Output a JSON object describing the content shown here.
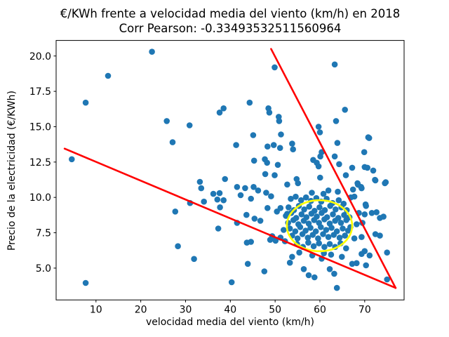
{
  "figure": {
    "title": "€/KWh frente a velocidad media del viento (km/h) en 2018",
    "subtitle": "Corr Pearson: -0.33493532511560964"
  },
  "chart_data": {
    "type": "scatter",
    "title": "€/KWh frente a velocidad media del viento (km/h) en 2018",
    "subtitle": "Corr Pearson: -0.33493532511560964",
    "xlabel": "velocidad media del viento (km/h)",
    "ylabel": "Precio de la electricidad (€/KWh)",
    "xlim": [
      1.1,
      78.8
    ],
    "ylim": [
      2.75,
      21.1
    ],
    "x_ticks": [
      10,
      20,
      30,
      40,
      50,
      60,
      70
    ],
    "x_tick_labels": [
      "10",
      "20",
      "30",
      "40",
      "50",
      "60",
      "70"
    ],
    "y_ticks": [
      5.0,
      7.5,
      10.0,
      12.5,
      15.0,
      17.5,
      20.0
    ],
    "y_tick_labels": [
      "5.0",
      "7.5",
      "10.0",
      "12.5",
      "15.0",
      "17.5",
      "20.0"
    ],
    "grid": false,
    "legend": null,
    "marker": {
      "color": "#1f77b4",
      "radius_px": 4.3
    },
    "annotations": {
      "lines": [
        {
          "name": "lower-red-line",
          "color": "#ff0000",
          "width": 2.6,
          "from": [
            3.0,
            13.45
          ],
          "to": [
            76.9,
            3.6
          ]
        },
        {
          "name": "upper-red-line",
          "color": "#ff0000",
          "width": 2.6,
          "from": [
            49.1,
            20.5
          ],
          "to": [
            76.9,
            3.6
          ]
        }
      ],
      "ellipse": {
        "name": "cluster-ellipse",
        "color": "#ffff00",
        "width": 2.6,
        "center": [
          59.9,
          8.0
        ],
        "rx": 7.3,
        "ry": 1.8
      }
    },
    "points": [
      [
        22.5,
        20.3
      ],
      [
        12.7,
        18.6
      ],
      [
        7.7,
        16.7
      ],
      [
        25.8,
        15.4
      ],
      [
        30.9,
        15.1
      ],
      [
        37.6,
        16.0
      ],
      [
        38.5,
        16.3
      ],
      [
        27.1,
        13.9
      ],
      [
        4.6,
        12.7
      ],
      [
        7.7,
        3.95
      ],
      [
        31,
        9.6
      ],
      [
        27.7,
        9.0
      ],
      [
        33.2,
        11.1
      ],
      [
        33.5,
        10.65
      ],
      [
        36.2,
        10.25
      ],
      [
        37.6,
        10.3
      ],
      [
        38.8,
        11.3
      ],
      [
        34.1,
        9.7
      ],
      [
        37.1,
        9.85
      ],
      [
        38.5,
        9.8
      ],
      [
        37.7,
        9.3
      ],
      [
        37.3,
        7.8
      ],
      [
        28.3,
        6.55
      ],
      [
        31.9,
        5.65
      ],
      [
        40.3,
        4.0
      ],
      [
        49.9,
        19.2
      ],
      [
        63.3,
        19.4
      ],
      [
        44.3,
        16.7
      ],
      [
        48.5,
        16.3
      ],
      [
        48.7,
        16.0
      ],
      [
        50.8,
        15.7
      ],
      [
        50.9,
        15.4
      ],
      [
        65.6,
        16.2
      ],
      [
        63.6,
        15.4
      ],
      [
        59.7,
        15.0
      ],
      [
        60.0,
        14.6
      ],
      [
        45.1,
        14.4
      ],
      [
        51.3,
        14.45
      ],
      [
        71.0,
        14.2
      ],
      [
        41.3,
        13.7
      ],
      [
        48.3,
        13.6
      ],
      [
        49.7,
        13.7
      ],
      [
        51.1,
        13.5
      ],
      [
        53.8,
        13.8
      ],
      [
        54.0,
        13.4
      ],
      [
        63.9,
        13.85
      ],
      [
        69.9,
        13.2
      ],
      [
        60.4,
        13.2
      ],
      [
        60.1,
        12.9
      ],
      [
        45.3,
        12.6
      ],
      [
        47.7,
        12.7
      ],
      [
        48.2,
        12.45
      ],
      [
        50.6,
        12.3
      ],
      [
        58.5,
        12.65
      ],
      [
        59.3,
        12.45
      ],
      [
        59.7,
        12.2
      ],
      [
        63.3,
        12.9
      ],
      [
        64.3,
        12.35
      ],
      [
        70.0,
        12.15
      ],
      [
        67.2,
        12.1
      ],
      [
        70.6,
        12.1
      ],
      [
        71.9,
        11.9
      ],
      [
        70.8,
        14.25
      ],
      [
        72.4,
        11.2
      ],
      [
        74.5,
        11.0
      ],
      [
        68.5,
        10.9
      ],
      [
        69.3,
        10.65
      ],
      [
        67.4,
        10.56
      ],
      [
        66.9,
        10.0
      ],
      [
        67.7,
        10.06
      ],
      [
        70.3,
        9.4
      ],
      [
        68.7,
        8.9
      ],
      [
        70.0,
        8.8
      ],
      [
        71.6,
        8.9
      ],
      [
        72.65,
        8.95
      ],
      [
        73.4,
        8.55
      ],
      [
        74.2,
        8.64
      ],
      [
        68.2,
        8.1
      ],
      [
        69.5,
        8.2
      ],
      [
        72.4,
        7.4
      ],
      [
        73.4,
        7.3
      ],
      [
        67.7,
        7.1
      ],
      [
        69.3,
        7.2
      ],
      [
        65.85,
        6.4
      ],
      [
        70.0,
        6.2
      ],
      [
        69.3,
        6.0
      ],
      [
        71.1,
        5.9
      ],
      [
        75.0,
        6.1
      ],
      [
        68.2,
        5.35
      ],
      [
        67.2,
        5.3
      ],
      [
        70.3,
        5.2
      ],
      [
        75.0,
        4.2
      ],
      [
        70.2,
        9.5
      ],
      [
        74.7,
        11.07
      ],
      [
        72.3,
        11.24
      ],
      [
        43.7,
        6.8
      ],
      [
        43.9,
        5.3
      ],
      [
        47.6,
        4.77
      ],
      [
        48.9,
        7.0
      ],
      [
        51.2,
        7.16
      ],
      [
        53.3,
        5.38
      ],
      [
        53.8,
        5.8
      ],
      [
        56.4,
        4.93
      ],
      [
        57.5,
        4.5
      ],
      [
        58.8,
        4.35
      ],
      [
        60.4,
        5.67
      ],
      [
        62.2,
        4.93
      ],
      [
        63.2,
        4.6
      ],
      [
        63.8,
        3.6
      ],
      [
        64.9,
        5.8
      ],
      [
        47.8,
        11.65
      ],
      [
        49.9,
        11.57
      ],
      [
        54.8,
        11.3
      ],
      [
        60.05,
        11.4
      ],
      [
        65.8,
        11.57
      ],
      [
        68.4,
        11.0
      ],
      [
        69.2,
        10.74
      ],
      [
        41.5,
        10.74
      ],
      [
        43.3,
        10.66
      ],
      [
        45.2,
        10.74
      ],
      [
        46.2,
        10.49
      ],
      [
        42.3,
        10.16
      ],
      [
        44.6,
        9.91
      ],
      [
        48.0,
        10.33
      ],
      [
        49.1,
        10.08
      ],
      [
        52.7,
        10.91
      ],
      [
        55.1,
        11.0
      ],
      [
        58.2,
        10.33
      ],
      [
        60.8,
        10.25
      ],
      [
        61.9,
        10.49
      ],
      [
        64.0,
        10.4
      ],
      [
        48.3,
        9.25
      ],
      [
        50.4,
        9.0
      ],
      [
        51.2,
        9.25
      ],
      [
        52.7,
        8.84
      ],
      [
        43.6,
        8.76
      ],
      [
        45.4,
        8.5
      ],
      [
        46.7,
        8.35
      ],
      [
        41.5,
        8.2
      ],
      [
        49.35,
        7.26
      ],
      [
        50.1,
        6.94
      ],
      [
        44.6,
        6.86
      ],
      [
        53.5,
        9.9
      ],
      [
        54.6,
        10.05
      ],
      [
        55.8,
        9.8
      ],
      [
        56.9,
        10.0
      ],
      [
        58.0,
        9.75
      ],
      [
        59.2,
        9.95
      ],
      [
        60.3,
        9.7
      ],
      [
        61.5,
        9.9
      ],
      [
        62.8,
        9.6
      ],
      [
        64.2,
        9.8
      ],
      [
        65.3,
        9.55
      ],
      [
        53.0,
        9.3
      ],
      [
        54.2,
        9.1
      ],
      [
        55.3,
        9.4
      ],
      [
        56.5,
        9.15
      ],
      [
        57.6,
        9.35
      ],
      [
        58.8,
        9.05
      ],
      [
        59.9,
        9.3
      ],
      [
        61.1,
        9.1
      ],
      [
        62.3,
        9.4
      ],
      [
        63.5,
        9.15
      ],
      [
        64.8,
        9.3
      ],
      [
        66.0,
        9.1
      ],
      [
        52.4,
        8.7
      ],
      [
        53.6,
        8.9
      ],
      [
        54.7,
        8.55
      ],
      [
        55.9,
        8.8
      ],
      [
        57.0,
        8.6
      ],
      [
        58.1,
        8.85
      ],
      [
        59.3,
        8.65
      ],
      [
        60.4,
        8.9
      ],
      [
        61.6,
        8.6
      ],
      [
        62.9,
        8.8
      ],
      [
        64.1,
        8.55
      ],
      [
        65.4,
        8.75
      ],
      [
        66.6,
        8.6
      ],
      [
        52.9,
        8.2
      ],
      [
        54.1,
        8.4
      ],
      [
        55.2,
        8.1
      ],
      [
        56.4,
        8.35
      ],
      [
        57.5,
        8.15
      ],
      [
        58.7,
        8.4
      ],
      [
        59.8,
        8.2
      ],
      [
        61.0,
        8.45
      ],
      [
        62.2,
        8.15
      ],
      [
        63.4,
        8.35
      ],
      [
        64.7,
        8.2
      ],
      [
        65.9,
        8.4
      ],
      [
        53.3,
        7.8
      ],
      [
        54.5,
        7.6
      ],
      [
        55.6,
        7.9
      ],
      [
        56.8,
        7.65
      ],
      [
        57.9,
        7.85
      ],
      [
        59.1,
        7.6
      ],
      [
        60.2,
        7.9
      ],
      [
        61.4,
        7.7
      ],
      [
        62.6,
        7.85
      ],
      [
        63.8,
        7.6
      ],
      [
        65.1,
        7.8
      ],
      [
        66.3,
        7.65
      ],
      [
        53.8,
        7.3
      ],
      [
        55.0,
        7.1
      ],
      [
        56.1,
        7.4
      ],
      [
        57.3,
        7.15
      ],
      [
        58.4,
        7.35
      ],
      [
        59.6,
        7.1
      ],
      [
        60.7,
        7.4
      ],
      [
        61.9,
        7.2
      ],
      [
        63.1,
        7.35
      ],
      [
        64.4,
        7.15
      ],
      [
        65.6,
        7.3
      ],
      [
        54.9,
        6.7
      ],
      [
        56.2,
        6.5
      ],
      [
        57.4,
        6.8
      ],
      [
        58.6,
        6.55
      ],
      [
        59.8,
        6.75
      ],
      [
        61.0,
        6.5
      ],
      [
        62.2,
        6.7
      ],
      [
        63.4,
        6.5
      ],
      [
        64.6,
        6.75
      ],
      [
        51.9,
        7.7
      ],
      [
        52.2,
        6.9
      ],
      [
        66.8,
        7.9
      ],
      [
        55.4,
        6.1
      ],
      [
        58.3,
        5.9
      ],
      [
        60.9,
        6.05
      ],
      [
        62.5,
        5.95
      ]
    ]
  }
}
